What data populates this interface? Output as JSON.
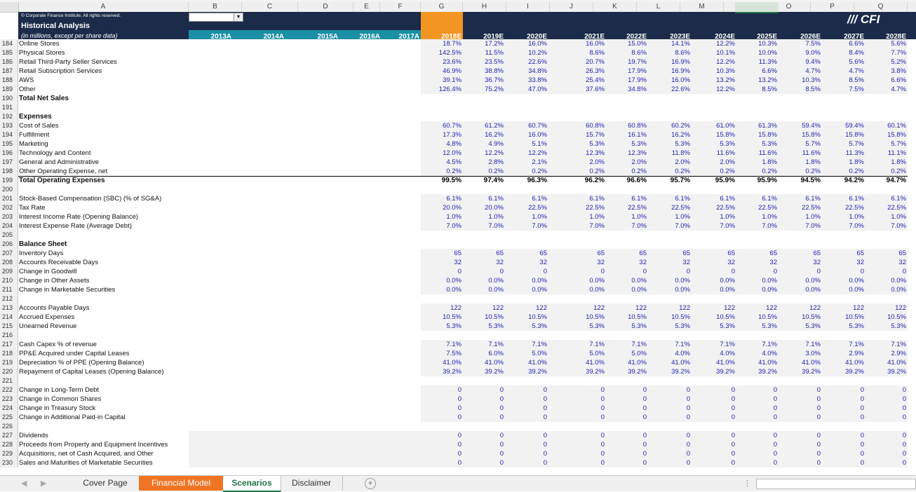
{
  "columns": [
    "A",
    "B",
    "C",
    "D",
    "E",
    "F",
    "G",
    "H",
    "I",
    "J",
    "K",
    "L",
    "M",
    "N",
    "O",
    "P",
    "Q"
  ],
  "header": {
    "copyright": "© Corporate Finance Institute. All rights reserved.",
    "title": "Historical Analysis",
    "subtitle": "(in millions, except per share data)",
    "logo": "CFI",
    "years": [
      "2013A",
      "2014A",
      "2015A",
      "2016A",
      "2017A",
      "2018E",
      "2019E",
      "2020E",
      "2021E",
      "2022E",
      "2023E",
      "2024E",
      "2025E",
      "2026E",
      "2027E",
      "2028E"
    ]
  },
  "rows": [
    {
      "n": "184",
      "label": "Online Stores",
      "vals": [
        "18.7%",
        "17.2%",
        "16.0%",
        "16.0%",
        "15.0%",
        "14.1%",
        "12.2%",
        "10.3%",
        "7.5%",
        "6.6%",
        "5.6%"
      ]
    },
    {
      "n": "185",
      "label": "Physical Stores",
      "vals": [
        "142.5%",
        "11.5%",
        "10.2%",
        "8.6%",
        "8.6%",
        "8.6%",
        "10.1%",
        "10.0%",
        "9.0%",
        "8.4%",
        "7.7%"
      ]
    },
    {
      "n": "186",
      "label": "Retail Third-Party Seller Services",
      "vals": [
        "23.6%",
        "23.5%",
        "22.6%",
        "20.7%",
        "19.7%",
        "16.9%",
        "12.2%",
        "11.3%",
        "9.4%",
        "5.6%",
        "5.2%"
      ]
    },
    {
      "n": "187",
      "label": "Retail Subscription Services",
      "vals": [
        "46.9%",
        "38.8%",
        "34.8%",
        "26.3%",
        "17.9%",
        "16.9%",
        "10.3%",
        "6.6%",
        "4.7%",
        "4.7%",
        "3.8%"
      ]
    },
    {
      "n": "188",
      "label": "AWS",
      "vals": [
        "39.1%",
        "36.7%",
        "33.8%",
        "25.4%",
        "17.9%",
        "16.0%",
        "13.2%",
        "13.2%",
        "10.3%",
        "8.5%",
        "6.6%"
      ]
    },
    {
      "n": "189",
      "label": "Other",
      "vals": [
        "126.4%",
        "75.2%",
        "47.0%",
        "37.6%",
        "34.8%",
        "22.6%",
        "12.2%",
        "8.5%",
        "8.5%",
        "7.5%",
        "4.7%"
      ]
    },
    {
      "n": "190",
      "label": "Total Net Sales",
      "bold": true,
      "vals": []
    },
    {
      "n": "191",
      "label": "",
      "vals": []
    },
    {
      "n": "192",
      "label": "Expenses",
      "bold": true,
      "vals": []
    },
    {
      "n": "193",
      "label": "Cost of Sales",
      "vals": [
        "60.7%",
        "61.2%",
        "60.7%",
        "60.8%",
        "60.8%",
        "60.2%",
        "61.0%",
        "61.3%",
        "59.4%",
        "59.4%",
        "60.1%"
      ]
    },
    {
      "n": "194",
      "label": "Fulfillment",
      "vals": [
        "17.3%",
        "16.2%",
        "16.0%",
        "15.7%",
        "16.1%",
        "16.2%",
        "15.8%",
        "15.8%",
        "15.8%",
        "15.8%",
        "15.8%"
      ]
    },
    {
      "n": "195",
      "label": "Marketing",
      "vals": [
        "4.8%",
        "4.9%",
        "5.1%",
        "5.3%",
        "5.3%",
        "5.3%",
        "5.3%",
        "5.3%",
        "5.7%",
        "5.7%",
        "5.7%"
      ]
    },
    {
      "n": "196",
      "label": "Technology and Content",
      "vals": [
        "12.0%",
        "12.2%",
        "12.2%",
        "12.3%",
        "12.3%",
        "11.8%",
        "11.6%",
        "11.6%",
        "11.6%",
        "11.3%",
        "11.1%"
      ]
    },
    {
      "n": "197",
      "label": "General and Administrative",
      "vals": [
        "4.5%",
        "2.8%",
        "2.1%",
        "2.0%",
        "2.0%",
        "2.0%",
        "2.0%",
        "1.8%",
        "1.8%",
        "1.8%",
        "1.8%"
      ]
    },
    {
      "n": "198",
      "label": "Other Operating Expense, net",
      "vals": [
        "0.2%",
        "0.2%",
        "0.2%",
        "0.2%",
        "0.2%",
        "0.2%",
        "0.2%",
        "0.2%",
        "0.2%",
        "0.2%",
        "0.2%"
      ]
    },
    {
      "n": "199",
      "label": "Total Operating Expenses",
      "bold": true,
      "total": true,
      "vals": [
        "99.5%",
        "97.4%",
        "96.3%",
        "96.2%",
        "96.6%",
        "95.7%",
        "95.9%",
        "95.9%",
        "94.5%",
        "94.2%",
        "94.7%"
      ]
    },
    {
      "n": "200",
      "label": "",
      "vals": []
    },
    {
      "n": "201",
      "label": "Stock-Based Compensation (SBC) (% of SG&A)",
      "vals": [
        "6.1%",
        "6.1%",
        "6.1%",
        "6.1%",
        "6.1%",
        "6.1%",
        "6.1%",
        "6.1%",
        "6.1%",
        "6.1%",
        "6.1%"
      ]
    },
    {
      "n": "202",
      "label": "Tax Rate",
      "vals": [
        "20.0%",
        "20.0%",
        "22.5%",
        "22.5%",
        "22.5%",
        "22.5%",
        "22.5%",
        "22.5%",
        "22.5%",
        "22.5%",
        "22.5%"
      ]
    },
    {
      "n": "203",
      "label": "Interest Income Rate (Opening Balance)",
      "vals": [
        "1.0%",
        "1.0%",
        "1.0%",
        "1.0%",
        "1.0%",
        "1.0%",
        "1.0%",
        "1.0%",
        "1.0%",
        "1.0%",
        "1.0%"
      ]
    },
    {
      "n": "204",
      "label": "Interest Expense Rate (Average Debt)",
      "vals": [
        "7.0%",
        "7.0%",
        "7.0%",
        "7.0%",
        "7.0%",
        "7.0%",
        "7.0%",
        "7.0%",
        "7.0%",
        "7.0%",
        "7.0%"
      ]
    },
    {
      "n": "205",
      "label": "",
      "vals": []
    },
    {
      "n": "206",
      "label": "Balance Sheet",
      "bold": true,
      "vals": []
    },
    {
      "n": "207",
      "label": "Inventory Days",
      "vals": [
        "65",
        "65",
        "65",
        "65",
        "65",
        "65",
        "65",
        "65",
        "65",
        "65",
        "65"
      ]
    },
    {
      "n": "208",
      "label": "Accounts Receivable Days",
      "vals": [
        "32",
        "32",
        "32",
        "32",
        "32",
        "32",
        "32",
        "32",
        "32",
        "32",
        "32"
      ]
    },
    {
      "n": "209",
      "label": "Change in Goodwill",
      "vals": [
        "0",
        "0",
        "0",
        "0",
        "0",
        "0",
        "0",
        "0",
        "0",
        "0",
        "0"
      ]
    },
    {
      "n": "210",
      "label": "Change in Other Assets",
      "vals": [
        "0.0%",
        "0.0%",
        "0.0%",
        "0.0%",
        "0.0%",
        "0.0%",
        "0.0%",
        "0.0%",
        "0.0%",
        "0.0%",
        "0.0%"
      ]
    },
    {
      "n": "211",
      "label": "Change in Marketable Securities",
      "vals": [
        "0.0%",
        "0.0%",
        "0.0%",
        "0.0%",
        "0.0%",
        "0.0%",
        "0.0%",
        "0.0%",
        "0.0%",
        "0.0%",
        "0.0%"
      ]
    },
    {
      "n": "212",
      "label": "",
      "vals": []
    },
    {
      "n": "213",
      "label": "Accounts Payable Days",
      "vals": [
        "122",
        "122",
        "122",
        "122",
        "122",
        "122",
        "122",
        "122",
        "122",
        "122",
        "122"
      ]
    },
    {
      "n": "214",
      "label": "Accrued Expenses",
      "vals": [
        "10.5%",
        "10.5%",
        "10.5%",
        "10.5%",
        "10.5%",
        "10.5%",
        "10.5%",
        "10.5%",
        "10.5%",
        "10.5%",
        "10.5%"
      ]
    },
    {
      "n": "215",
      "label": "Unearned Revenue",
      "vals": [
        "5.3%",
        "5.3%",
        "5.3%",
        "5.3%",
        "5.3%",
        "5.3%",
        "5.3%",
        "5.3%",
        "5.3%",
        "5.3%",
        "5.3%"
      ]
    },
    {
      "n": "216",
      "label": "",
      "vals": []
    },
    {
      "n": "217",
      "label": "Cash Capex % of revenue",
      "vals": [
        "7.1%",
        "7.1%",
        "7.1%",
        "7.1%",
        "7.1%",
        "7.1%",
        "7.1%",
        "7.1%",
        "7.1%",
        "7.1%",
        "7.1%"
      ]
    },
    {
      "n": "218",
      "label": "PP&E Acquired under Capital Leases",
      "vals": [
        "7.5%",
        "6.0%",
        "5.0%",
        "5.0%",
        "5.0%",
        "4.0%",
        "4.0%",
        "4.0%",
        "3.0%",
        "2.9%",
        "2.9%"
      ]
    },
    {
      "n": "219",
      "label": "Depreciation % of PPE (Opening Balance)",
      "vals": [
        "41.0%",
        "41.0%",
        "41.0%",
        "41.0%",
        "41.0%",
        "41.0%",
        "41.0%",
        "41.0%",
        "41.0%",
        "41.0%",
        "41.0%"
      ]
    },
    {
      "n": "220",
      "label": "Repayment of Capital Leases (Opening Balance)",
      "vals": [
        "39.2%",
        "39.2%",
        "39.2%",
        "39.2%",
        "39.2%",
        "39.2%",
        "39.2%",
        "39.2%",
        "39.2%",
        "39.2%",
        "39.2%"
      ]
    },
    {
      "n": "221",
      "label": "",
      "vals": []
    },
    {
      "n": "222",
      "label": "Change in Long-Term Debt",
      "vals": [
        "0",
        "0",
        "0",
        "0",
        "0",
        "0",
        "0",
        "0",
        "0",
        "0",
        "0"
      ]
    },
    {
      "n": "223",
      "label": "Change in Common Shares",
      "vals": [
        "0",
        "0",
        "0",
        "0",
        "0",
        "0",
        "0",
        "0",
        "0",
        "0",
        "0"
      ]
    },
    {
      "n": "224",
      "label": "Change in Treasury Stock",
      "vals": [
        "0",
        "0",
        "0",
        "0",
        "0",
        "0",
        "0",
        "0",
        "0",
        "0",
        "0"
      ]
    },
    {
      "n": "225",
      "label": "Change in Additional Paid-in Capital",
      "vals": [
        "0",
        "0",
        "0",
        "0",
        "0",
        "0",
        "0",
        "0",
        "0",
        "0",
        "0"
      ]
    },
    {
      "n": "226",
      "label": "",
      "vals": []
    },
    {
      "n": "227",
      "label": "Dividends",
      "vals": [
        "0",
        "0",
        "0",
        "0",
        "0",
        "0",
        "0",
        "0",
        "0",
        "0",
        "0"
      ]
    },
    {
      "n": "228",
      "label": "Proceeds from Property and Equipment Incentives",
      "vals": [
        "0",
        "0",
        "0",
        "0",
        "0",
        "0",
        "0",
        "0",
        "0",
        "0",
        "0"
      ]
    },
    {
      "n": "229",
      "label": "Acquisitions, net of Cash Acquired, and Other",
      "vals": [
        "0",
        "0",
        "0",
        "0",
        "0",
        "0",
        "0",
        "0",
        "0",
        "0",
        "0"
      ]
    },
    {
      "n": "230",
      "label": "Sales and Maturities of Marketable Securities",
      "vals": [
        "0",
        "0",
        "0",
        "0",
        "0",
        "0",
        "0",
        "0",
        "0",
        "0",
        "0"
      ]
    }
  ],
  "tabs": [
    "Cover Page",
    "Financial Model",
    "Scenarios",
    "Disclaimer"
  ],
  "active_tab": "Scenarios",
  "nav": {
    "prev": "◀",
    "next": "▶",
    "add": "+",
    "dots": "⋮"
  },
  "colors": {
    "navy": "#1c2b4a",
    "teal": "#1b8fa3",
    "orange": "#f29522",
    "value_blue": "#1f1fb4"
  }
}
